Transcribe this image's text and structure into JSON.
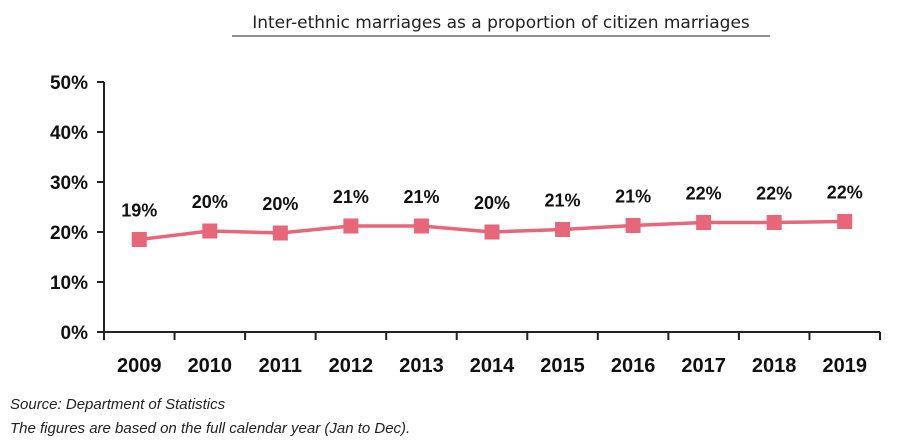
{
  "chart_data": {
    "type": "line",
    "title": "Inter-ethnic marriages as a proportion of citizen marriages",
    "categories": [
      "2009",
      "2010",
      "2011",
      "2012",
      "2013",
      "2014",
      "2015",
      "2016",
      "2017",
      "2018",
      "2019"
    ],
    "values": [
      18.5,
      20.2,
      19.8,
      21.2,
      21.2,
      20.0,
      20.5,
      21.3,
      21.9,
      21.9,
      22.1
    ],
    "data_labels": [
      "19%",
      "20%",
      "20%",
      "21%",
      "21%",
      "20%",
      "21%",
      "21%",
      "22%",
      "22%",
      "22%"
    ],
    "ylim": [
      0,
      50
    ],
    "y_ticks": [
      0,
      10,
      20,
      30,
      40,
      50
    ],
    "y_tick_labels": [
      "0%",
      "10%",
      "20%",
      "30%",
      "40%",
      "50%"
    ],
    "xlabel": "",
    "ylabel": "",
    "grid": false,
    "legend": "none",
    "line_color": "#E8667A",
    "marker": "square"
  },
  "footnotes": {
    "source": "Source: Department of Statistics",
    "note": "The figures are based on the full calendar year (Jan to Dec)."
  }
}
